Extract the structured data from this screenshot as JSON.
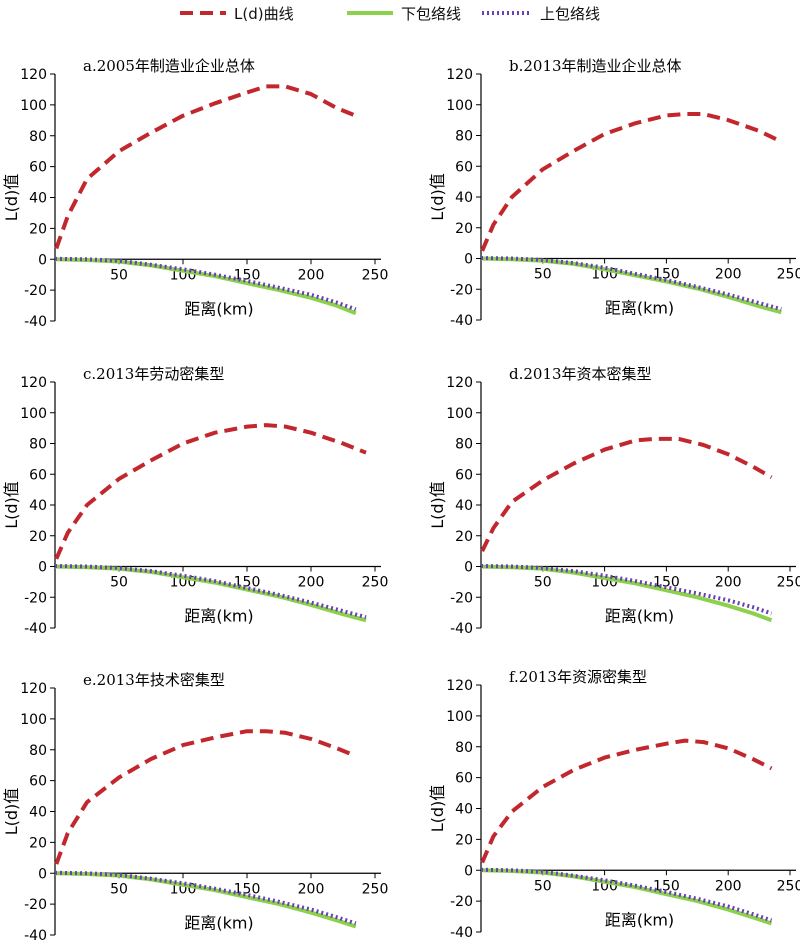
{
  "legend": {
    "ld": "L(d)曲线",
    "lower": "下包络线",
    "upper": "上包络线"
  },
  "colors": {
    "ld": "#c1272d",
    "lower": "#8bd14c",
    "upper": "#6a3fb5",
    "axis": "#000000"
  },
  "chart_data": [
    {
      "type": "line",
      "title": "a.2005年制造业企业总体",
      "xlabel": "距离(km)",
      "ylabel": "L(d)值",
      "xticks": [
        50,
        100,
        150,
        200,
        250
      ],
      "yticks": [
        -40,
        -20,
        0,
        20,
        40,
        60,
        80,
        100,
        120
      ],
      "ylim": [
        -40,
        120
      ],
      "xlim": [
        0,
        250
      ],
      "series": [
        {
          "name": "L(d)曲线",
          "x": [
            1,
            10,
            25,
            50,
            75,
            100,
            125,
            150,
            165,
            180,
            200,
            220,
            235
          ],
          "y": [
            7,
            28,
            52,
            70,
            82,
            93,
            101,
            108,
            112,
            112,
            107,
            98,
            93
          ]
        },
        {
          "name": "下包络线",
          "x": [
            0,
            25,
            50,
            75,
            100,
            125,
            150,
            175,
            200,
            220,
            235
          ],
          "y": [
            0,
            -0.5,
            -1.5,
            -4,
            -7.5,
            -11,
            -15.5,
            -20,
            -25,
            -30,
            -35
          ]
        },
        {
          "name": "上包络线",
          "x": [
            0,
            25,
            50,
            75,
            100,
            125,
            150,
            175,
            200,
            220,
            235
          ],
          "y": [
            0.3,
            0,
            -1,
            -3.5,
            -6.5,
            -10,
            -14,
            -18.5,
            -23,
            -28,
            -32.5
          ]
        }
      ]
    },
    {
      "type": "line",
      "title": "b.2013年制造业企业总体",
      "xlabel": "距离(km)",
      "ylabel": "L(d)值",
      "xticks": [
        50,
        100,
        150,
        200,
        250
      ],
      "yticks": [
        -40,
        -20,
        0,
        20,
        40,
        60,
        80,
        100,
        120
      ],
      "ylim": [
        -40,
        120
      ],
      "xlim": [
        0,
        250
      ],
      "series": [
        {
          "name": "L(d)曲线",
          "x": [
            1,
            10,
            25,
            50,
            75,
            100,
            125,
            150,
            165,
            180,
            200,
            225,
            243
          ],
          "y": [
            5,
            22,
            40,
            58,
            70,
            81,
            88,
            93,
            94,
            94,
            90,
            83,
            76
          ]
        },
        {
          "name": "下包络线",
          "x": [
            0,
            25,
            50,
            75,
            100,
            125,
            150,
            175,
            200,
            225,
            243
          ],
          "y": [
            0,
            -0.5,
            -1.5,
            -3.5,
            -7,
            -11,
            -15,
            -19.5,
            -25,
            -31,
            -35
          ]
        },
        {
          "name": "上包络线",
          "x": [
            0,
            25,
            50,
            75,
            100,
            125,
            150,
            175,
            200,
            225,
            243
          ],
          "y": [
            0.3,
            0,
            -1,
            -3,
            -6,
            -10,
            -14,
            -18.5,
            -23.5,
            -29,
            -33
          ]
        }
      ]
    },
    {
      "type": "line",
      "title": "c.2013年劳动密集型",
      "xlabel": "距离(km)",
      "ylabel": "L(d)值",
      "xticks": [
        50,
        100,
        150,
        200,
        250
      ],
      "yticks": [
        -40,
        -20,
        0,
        20,
        40,
        60,
        80,
        100,
        120
      ],
      "ylim": [
        -40,
        120
      ],
      "xlim": [
        0,
        250
      ],
      "series": [
        {
          "name": "L(d)曲线",
          "x": [
            1,
            10,
            25,
            50,
            75,
            100,
            125,
            150,
            165,
            180,
            200,
            225,
            243
          ],
          "y": [
            5,
            22,
            40,
            57,
            69,
            80,
            87,
            91,
            92,
            91,
            87,
            80,
            74
          ]
        },
        {
          "name": "下包络线",
          "x": [
            0,
            25,
            50,
            75,
            100,
            125,
            150,
            175,
            200,
            225,
            243
          ],
          "y": [
            0,
            -0.5,
            -1.5,
            -3.5,
            -7,
            -10.5,
            -15,
            -19.5,
            -25,
            -31,
            -35
          ]
        },
        {
          "name": "上包络线",
          "x": [
            0,
            25,
            50,
            75,
            100,
            125,
            150,
            175,
            200,
            225,
            243
          ],
          "y": [
            0.3,
            0,
            -1,
            -3,
            -6,
            -9.5,
            -14,
            -18.5,
            -23.5,
            -29,
            -33
          ]
        }
      ]
    },
    {
      "type": "line",
      "title": "d.2013年资本密集型",
      "xlabel": "距离(km)",
      "ylabel": "L(d)值",
      "xticks": [
        50,
        100,
        150,
        200,
        250
      ],
      "yticks": [
        -40,
        -20,
        0,
        20,
        40,
        60,
        80,
        100,
        120
      ],
      "ylim": [
        -40,
        120
      ],
      "xlim": [
        0,
        250
      ],
      "series": [
        {
          "name": "L(d)曲线",
          "x": [
            1,
            10,
            25,
            50,
            75,
            100,
            125,
            140,
            160,
            180,
            200,
            220,
            235
          ],
          "y": [
            10,
            25,
            42,
            56,
            67,
            76,
            82,
            83,
            83,
            79,
            73,
            65,
            58
          ]
        },
        {
          "name": "下包络线",
          "x": [
            0,
            25,
            50,
            75,
            100,
            125,
            150,
            175,
            200,
            220,
            235
          ],
          "y": [
            0,
            -0.5,
            -1.5,
            -4,
            -7.5,
            -11,
            -15.5,
            -20,
            -25.5,
            -30.5,
            -35
          ]
        },
        {
          "name": "上包络线",
          "x": [
            0,
            25,
            50,
            75,
            100,
            125,
            150,
            175,
            200,
            220,
            235
          ],
          "y": [
            0.3,
            0,
            -1,
            -3,
            -6,
            -9.5,
            -13.5,
            -17.5,
            -22,
            -26.5,
            -30.5
          ]
        }
      ]
    },
    {
      "type": "line",
      "title": "e.2013年技术密集型",
      "xlabel": "距离(km)",
      "ylabel": "L(d)值",
      "xticks": [
        50,
        100,
        150,
        200,
        250
      ],
      "yticks": [
        -40,
        -20,
        0,
        20,
        40,
        60,
        80,
        100,
        120
      ],
      "ylim": [
        -40,
        120
      ],
      "xlim": [
        0,
        250
      ],
      "series": [
        {
          "name": "L(d)曲线",
          "x": [
            1,
            10,
            25,
            50,
            75,
            100,
            125,
            150,
            165,
            180,
            200,
            220,
            235
          ],
          "y": [
            6,
            26,
            46,
            62,
            74,
            83,
            88,
            92,
            92,
            91,
            87,
            81,
            76
          ]
        },
        {
          "name": "下包络线",
          "x": [
            0,
            25,
            50,
            75,
            100,
            125,
            150,
            175,
            200,
            220,
            235
          ],
          "y": [
            0,
            -0.5,
            -1.5,
            -4,
            -7.5,
            -11,
            -15.5,
            -20,
            -25.5,
            -30.5,
            -34.5
          ]
        },
        {
          "name": "上包络线",
          "x": [
            0,
            25,
            50,
            75,
            100,
            125,
            150,
            175,
            200,
            220,
            235
          ],
          "y": [
            0.3,
            0,
            -1,
            -3.5,
            -6.5,
            -10,
            -14,
            -18.5,
            -23.5,
            -28.5,
            -32.5
          ]
        }
      ]
    },
    {
      "type": "line",
      "title": "f.2013年资源密集型",
      "xlabel": "距离(km)",
      "ylabel": "L(d)值",
      "xticks": [
        50,
        100,
        150,
        200,
        250
      ],
      "yticks": [
        -40,
        -20,
        0,
        20,
        40,
        60,
        80,
        100,
        120
      ],
      "ylim": [
        -40,
        120
      ],
      "xlim": [
        0,
        250
      ],
      "series": [
        {
          "name": "L(d)曲线",
          "x": [
            1,
            10,
            25,
            50,
            75,
            100,
            125,
            150,
            165,
            180,
            200,
            220,
            235
          ],
          "y": [
            5,
            22,
            38,
            54,
            65,
            73,
            78,
            82,
            84,
            83,
            79,
            72,
            66
          ]
        },
        {
          "name": "下包络线",
          "x": [
            0,
            25,
            50,
            75,
            100,
            125,
            150,
            175,
            200,
            220,
            235
          ],
          "y": [
            0,
            -0.5,
            -1.5,
            -4,
            -7.5,
            -11,
            -15.5,
            -20,
            -25.5,
            -30.5,
            -34.5
          ]
        },
        {
          "name": "上包络线",
          "x": [
            0,
            25,
            50,
            75,
            100,
            125,
            150,
            175,
            200,
            220,
            235
          ],
          "y": [
            0.3,
            0,
            -1,
            -3.5,
            -6.5,
            -10,
            -14,
            -18.5,
            -23.5,
            -28.5,
            -32.5
          ]
        }
      ]
    }
  ]
}
